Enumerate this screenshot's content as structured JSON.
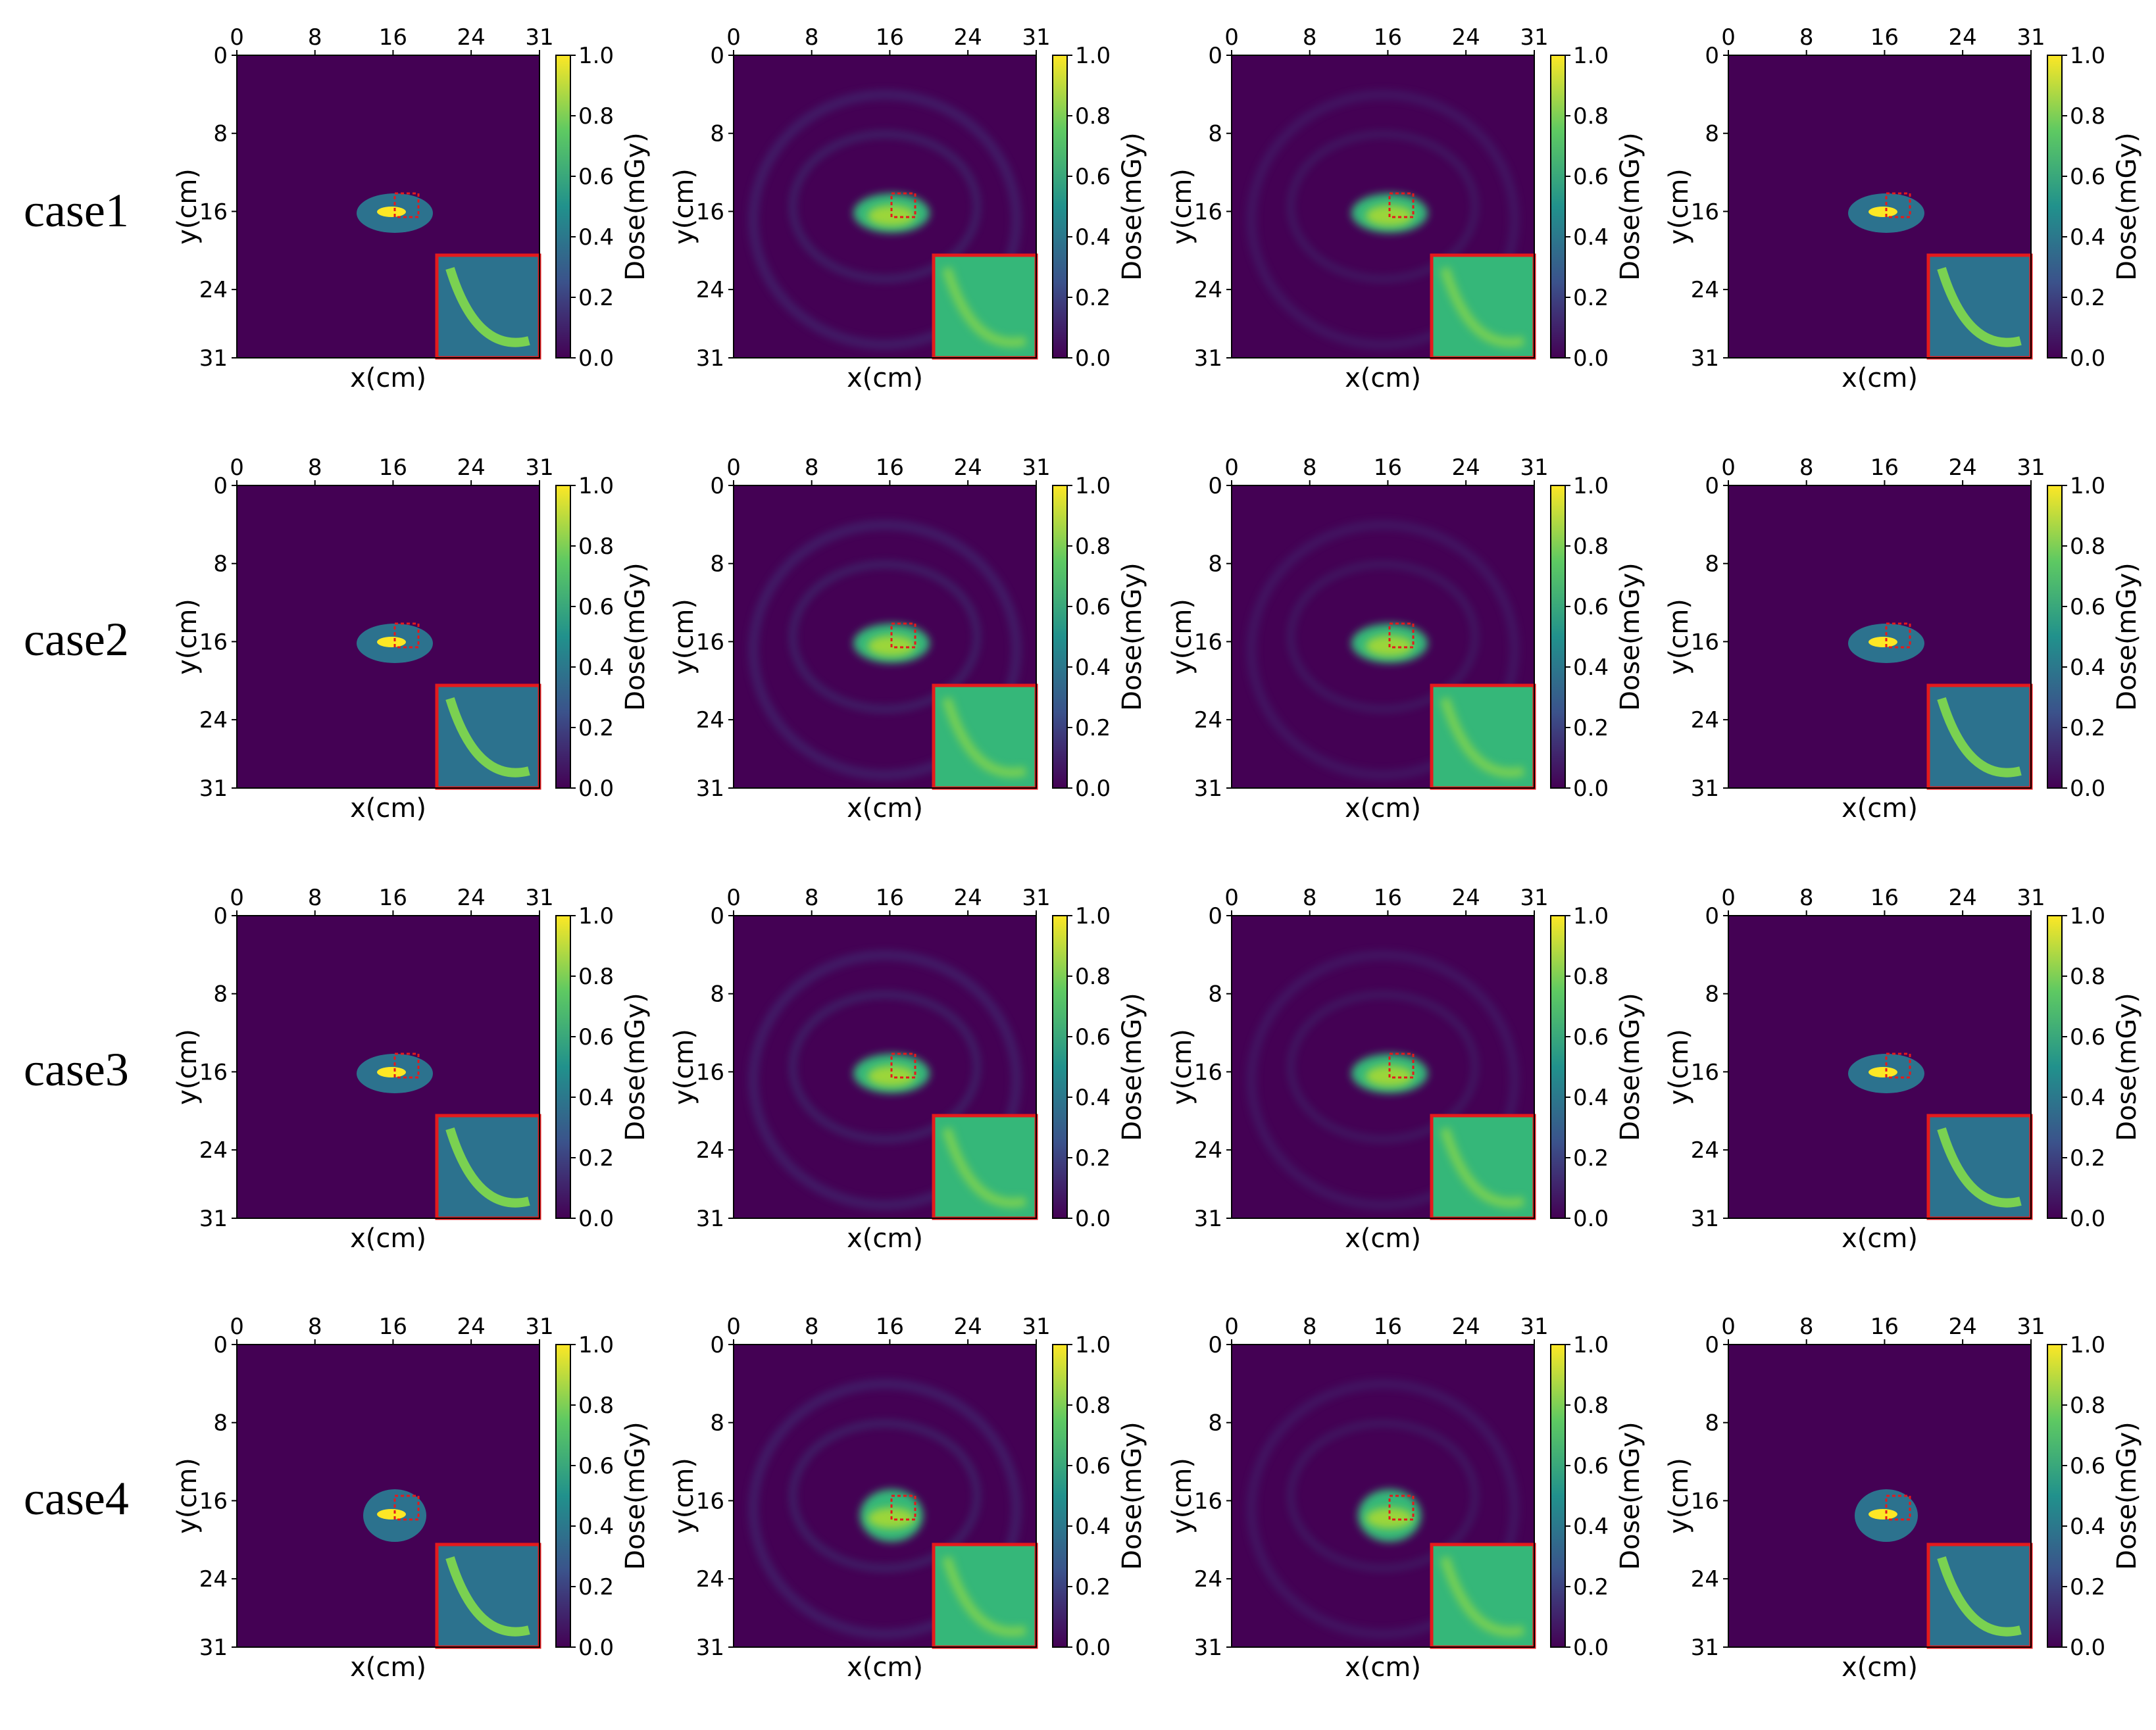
{
  "figure": {
    "rows": [
      {
        "label": "case1"
      },
      {
        "label": "case2"
      },
      {
        "label": "case3"
      },
      {
        "label": "case4"
      }
    ],
    "columns": 4
  },
  "chart_data": {
    "type": "heatmap",
    "panel_count": 16,
    "xlabel": "x(cm)",
    "ylabel": "y(cm)",
    "xticks": [
      "0",
      "8",
      "16",
      "24",
      "31"
    ],
    "yticks": [
      "0",
      "8",
      "16",
      "24",
      "31"
    ],
    "xlim": [
      0,
      31
    ],
    "ylim": [
      0,
      31
    ],
    "colorbar": {
      "label": "Dose(mGy)",
      "ticks": [
        "0.0",
        "0.2",
        "0.4",
        "0.6",
        "0.8",
        "1.0"
      ],
      "range": [
        0.0,
        1.0
      ],
      "colormap": [
        "#440154",
        "#3b528b",
        "#21918c",
        "#5ec962",
        "#fde725"
      ]
    },
    "colors": {
      "background": "#440154",
      "inset_border": "#e41a1c"
    }
  }
}
